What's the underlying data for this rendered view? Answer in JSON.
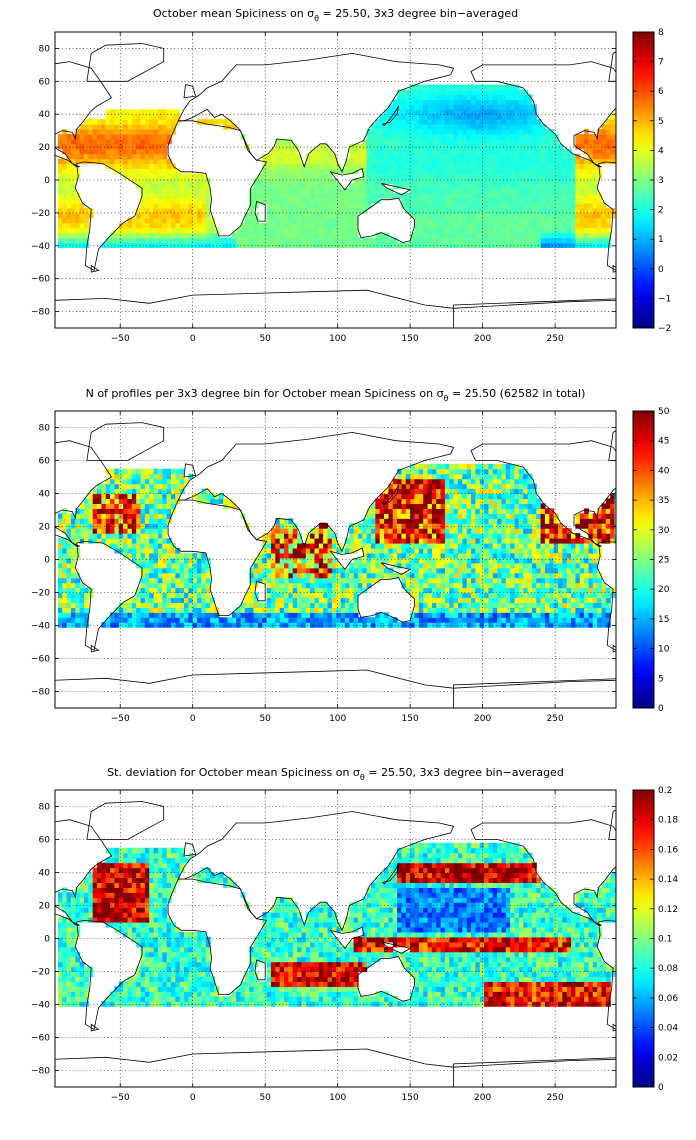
{
  "chart_data": [
    {
      "type": "heatmap",
      "title": "October mean Spiciness on σθ = 25.50, 3x3 degree bin−averaged",
      "title_parts": {
        "before": "October mean Spiciness on σ",
        "sub": "θ",
        "after": " = 25.50, 3x3 degree bin−averaged"
      },
      "xlim": [
        -95,
        292
      ],
      "ylim": [
        -90,
        90
      ],
      "xticks": [
        -50,
        0,
        50,
        100,
        150,
        200,
        250
      ],
      "yticks": [
        -80,
        -60,
        -40,
        -20,
        0,
        20,
        40,
        60,
        80
      ],
      "colorbar": {
        "min": -2,
        "max": 8,
        "ticks": [
          -2,
          -1,
          0,
          1,
          2,
          3,
          4,
          5,
          6,
          7,
          8
        ]
      },
      "colormap": "jet",
      "grid": true,
      "bin_size_deg": 3,
      "field": "spice"
    },
    {
      "type": "heatmap",
      "title": "N of profiles per 3x3 degree bin for October mean Spiciness on σθ = 25.50 (62582 in total)",
      "title_parts": {
        "before": "N of profiles per 3x3 degree bin for October mean Spiciness on σ",
        "sub": "θ",
        "after": " = 25.50 (62582 in total)"
      },
      "xlim": [
        -95,
        292
      ],
      "ylim": [
        -90,
        90
      ],
      "xticks": [
        -50,
        0,
        50,
        100,
        150,
        200,
        250
      ],
      "yticks": [
        -80,
        -60,
        -40,
        -20,
        0,
        20,
        40,
        60,
        80
      ],
      "colorbar": {
        "min": 0,
        "max": 50,
        "ticks": [
          0,
          5,
          10,
          15,
          20,
          25,
          30,
          35,
          40,
          45,
          50
        ]
      },
      "colormap": "jet",
      "grid": true,
      "bin_size_deg": 3,
      "total_profiles": 62582,
      "field": "count"
    },
    {
      "type": "heatmap",
      "title": "St. deviation for October mean Spiciness on σθ = 25.50, 3x3 degree bin−averaged",
      "title_parts": {
        "before": "St. deviation for October mean Spiciness on σ",
        "sub": "θ",
        "after": " = 25.50, 3x3 degree bin−averaged"
      },
      "xlim": [
        -95,
        292
      ],
      "ylim": [
        -90,
        90
      ],
      "xticks": [
        -50,
        0,
        50,
        100,
        150,
        200,
        250
      ],
      "yticks": [
        -80,
        -60,
        -40,
        -20,
        0,
        20,
        40,
        60,
        80
      ],
      "colorbar": {
        "min": 0,
        "max": 0.2,
        "ticks": [
          0,
          0.02,
          0.04,
          0.06,
          0.08,
          0.1,
          0.12,
          0.14,
          0.16,
          0.18,
          0.2
        ]
      },
      "colormap": "jet",
      "grid": true,
      "bin_size_deg": 3,
      "field": "std"
    }
  ]
}
